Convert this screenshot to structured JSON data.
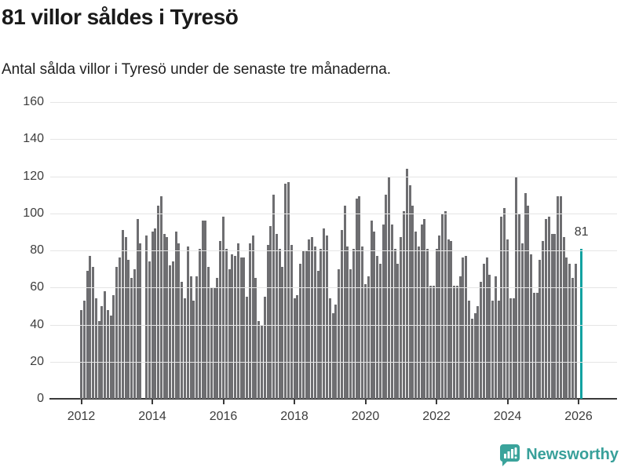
{
  "header": {
    "title": "81 villor såldes i Tyresö",
    "subtitle": "Antal sålda villor i Tyresö under de senaste tre månaderna."
  },
  "footer": {
    "brand_name": "Newsworthy",
    "brand_color": "#38a09a",
    "brand_icon": "speech-bubble-bar-chart-exclamation"
  },
  "chart_data": {
    "type": "bar",
    "title": "81 villor såldes i Tyresö",
    "subtitle": "Antal sålda villor i Tyresö under de senaste tre månaderna.",
    "xlabel": "",
    "ylabel": "",
    "x_start": "2012-01",
    "frequency": "monthly",
    "ylim": [
      0,
      160
    ],
    "grid": "horizontal",
    "y_ticks": [
      0,
      20,
      40,
      60,
      80,
      100,
      120,
      140,
      160
    ],
    "x_tick_labels": [
      "2012",
      "2014",
      "2016",
      "2018",
      "2020",
      "2022",
      "2024",
      "2026"
    ],
    "bar_color": "#6e6e71",
    "highlight_color": "#12a2a1",
    "highlight": {
      "index": 169,
      "value": 81,
      "label": "81"
    },
    "values": [
      48,
      53,
      69,
      77,
      71,
      54,
      42,
      50,
      58,
      48,
      45,
      56,
      71,
      76,
      91,
      87,
      75,
      65,
      70,
      97,
      84,
      0,
      88,
      74,
      90,
      92,
      104,
      109,
      89,
      87,
      72,
      74,
      90,
      84,
      63,
      54,
      82,
      66,
      53,
      66,
      81,
      96,
      96,
      71,
      60,
      60,
      65,
      85,
      98,
      81,
      70,
      78,
      77,
      84,
      76,
      76,
      55,
      84,
      88,
      65,
      42,
      40,
      55,
      83,
      93,
      110,
      89,
      81,
      71,
      116,
      117,
      83,
      54,
      56,
      73,
      80,
      80,
      86,
      87,
      82,
      69,
      81,
      92,
      88,
      54,
      46,
      51,
      70,
      91,
      104,
      82,
      70,
      81,
      108,
      109,
      82,
      62,
      66,
      96,
      90,
      77,
      73,
      94,
      110,
      120,
      94,
      81,
      73,
      87,
      101,
      124,
      115,
      104,
      90,
      82,
      94,
      97,
      81,
      61,
      61,
      81,
      88,
      100,
      101,
      86,
      85,
      61,
      61,
      66,
      76,
      77,
      53,
      43,
      46,
      50,
      63,
      73,
      76,
      67,
      53,
      66,
      53,
      98,
      103,
      86,
      54,
      54,
      120,
      100,
      84,
      111,
      104,
      78,
      57,
      57,
      75,
      85,
      97,
      98,
      89,
      89,
      109,
      109,
      87,
      76,
      73,
      65,
      73,
      0,
      81
    ]
  }
}
